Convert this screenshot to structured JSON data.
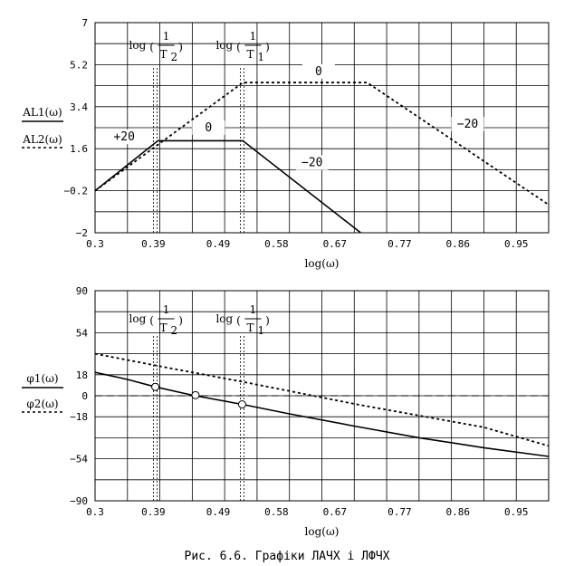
{
  "caption": "Рис. 6.6. Графіки ЛАЧХ і ЛФЧХ",
  "chart_data": [
    {
      "type": "line",
      "xlabel": "log(ω)",
      "ylabel": [
        "AL1(ω)",
        "AL2(ω)"
      ],
      "xlim": [
        0.3,
        1.0
      ],
      "ylim": [
        -2,
        7
      ],
      "xticks": [
        0.3,
        0.39,
        0.49,
        0.58,
        0.67,
        0.77,
        0.86,
        0.95
      ],
      "xtick_labels": [
        "0.3",
        "0.39",
        "0.49",
        "0.58",
        "0.67",
        "0.77",
        "0.86",
        "0.95"
      ],
      "yticks": [
        -2,
        -0.2,
        1.6,
        3.4,
        5.2,
        7
      ],
      "ytick_labels": [
        "−2",
        "−0.2",
        "1.6",
        "3.4",
        "5.2",
        "7"
      ],
      "grid": true,
      "series": [
        {
          "name": "AL1(ω)",
          "style": "solid",
          "x": [
            0.3,
            0.397,
            0.528,
            0.71
          ],
          "y": [
            -0.2,
            1.94,
            1.94,
            -2.0
          ]
        },
        {
          "name": "AL2(ω)",
          "style": "dotted",
          "x": [
            0.3,
            0.528,
            0.72,
            1.0
          ],
          "y": [
            -0.2,
            4.43,
            4.43,
            -0.8
          ]
        }
      ],
      "vlines": [
        {
          "x": 0.393,
          "label_num": "1",
          "label_den": "T",
          "label_sub": "2"
        },
        {
          "x": 0.527,
          "label_num": "1",
          "label_den": "T",
          "label_sub": "1"
        }
      ],
      "vline_prefix": "log",
      "annotations": [
        {
          "text": "+20",
          "x": 0.345,
          "y": 1.95
        },
        {
          "text": "0",
          "x": 0.475,
          "y": 2.35
        },
        {
          "text": "−20",
          "x": 0.635,
          "y": 0.85
        },
        {
          "text": "0",
          "x": 0.645,
          "y": 4.75
        },
        {
          "text": "−20",
          "x": 0.875,
          "y": 2.5
        }
      ]
    },
    {
      "type": "line",
      "xlabel": "log(ω)",
      "ylabel": [
        "φ1(ω)",
        "φ2(ω)"
      ],
      "xlim": [
        0.3,
        1.0
      ],
      "ylim": [
        -90,
        90
      ],
      "xticks": [
        0.3,
        0.39,
        0.49,
        0.58,
        0.67,
        0.77,
        0.86,
        0.95
      ],
      "xtick_labels": [
        "0.3",
        "0.39",
        "0.49",
        "0.58",
        "0.67",
        "0.77",
        "0.86",
        "0.95"
      ],
      "yticks": [
        -90,
        -54,
        -18,
        0,
        18,
        54,
        90
      ],
      "ytick_labels": [
        "−90",
        "−54",
        "−18",
        "0",
        "18",
        "54",
        "90"
      ],
      "grid": true,
      "zero_line": true,
      "series": [
        {
          "name": "φ1(ω)",
          "style": "solid",
          "x": [
            0.3,
            0.35,
            0.393,
            0.45,
            0.527,
            0.6,
            0.7,
            0.8,
            0.9,
            1.0
          ],
          "y": [
            20.0,
            14.0,
            7.6,
            0.5,
            -7.4,
            -15.5,
            -26.0,
            -36.0,
            -44.5,
            -52.0
          ]
        },
        {
          "name": "φ2(ω)",
          "style": "dotted",
          "x": [
            0.3,
            0.393,
            0.527,
            0.6,
            0.7,
            0.8,
            0.9,
            1.0
          ],
          "y": [
            36.0,
            26.0,
            12.0,
            4.0,
            -7.0,
            -17.0,
            -27.0,
            -43.0
          ]
        }
      ],
      "markers": [
        {
          "x": 0.393,
          "y": 7.6
        },
        {
          "x": 0.455,
          "y": 0.5
        },
        {
          "x": 0.527,
          "y": -7.4
        }
      ],
      "vlines": [
        {
          "x": 0.393,
          "label_num": "1",
          "label_den": "T",
          "label_sub": "2"
        },
        {
          "x": 0.527,
          "label_num": "1",
          "label_den": "T",
          "label_sub": "1"
        }
      ],
      "vline_prefix": "log",
      "annotations": []
    }
  ]
}
